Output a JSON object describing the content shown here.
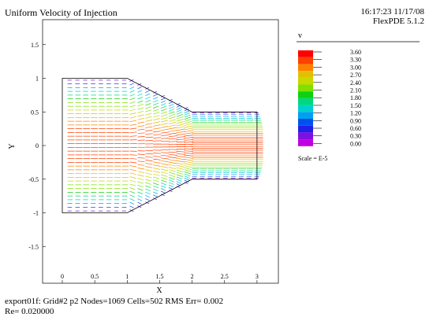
{
  "header": {
    "title": "Uniform Velocity of Injection",
    "timestamp": "16:17:23 11/17/08",
    "version": "FlexPDE 5.1.2"
  },
  "footer": {
    "line1": "export01f:  Grid#2  p2  Nodes=1069 Cells=502 RMS Err= 0.002",
    "line2": "Re=  0.020000"
  },
  "colors": {
    "legend_scale": [
      "#ff0000",
      "#ff4000",
      "#ff8000",
      "#e0c000",
      "#c8d800",
      "#80e000",
      "#10d010",
      "#00d880",
      "#00d0d0",
      "#00a0f0",
      "#0050f0",
      "#2020e8",
      "#8010e0",
      "#c000e0"
    ]
  },
  "chart_data": {
    "type": "vector",
    "title": "Uniform Velocity of Injection",
    "xlabel": "X",
    "ylabel": "Y",
    "xlim": [
      -0.3,
      3.35
    ],
    "ylim": [
      -1.75,
      1.75
    ],
    "x_ticks": [
      "0",
      "0.5",
      "1",
      "1.5",
      "2",
      "2.5",
      "3"
    ],
    "y_ticks": [
      "1.5",
      "1",
      "0.5",
      "0",
      "-0.5",
      "-1",
      "-1.5"
    ],
    "domain_outline": [
      [
        0,
        1
      ],
      [
        1,
        1
      ],
      [
        2,
        0.5
      ],
      [
        3,
        0.5
      ],
      [
        3,
        -0.5
      ],
      [
        2,
        -0.5
      ],
      [
        1,
        -1
      ],
      [
        0,
        -1
      ]
    ],
    "legend": {
      "title": "v",
      "values": [
        "3.60",
        "3.30",
        "3.00",
        "2.70",
        "2.40",
        "2.10",
        "1.80",
        "1.50",
        "1.20",
        "0.90",
        "0.60",
        "0.30",
        "0.00"
      ],
      "scale_note": "Scale = E-5"
    }
  }
}
